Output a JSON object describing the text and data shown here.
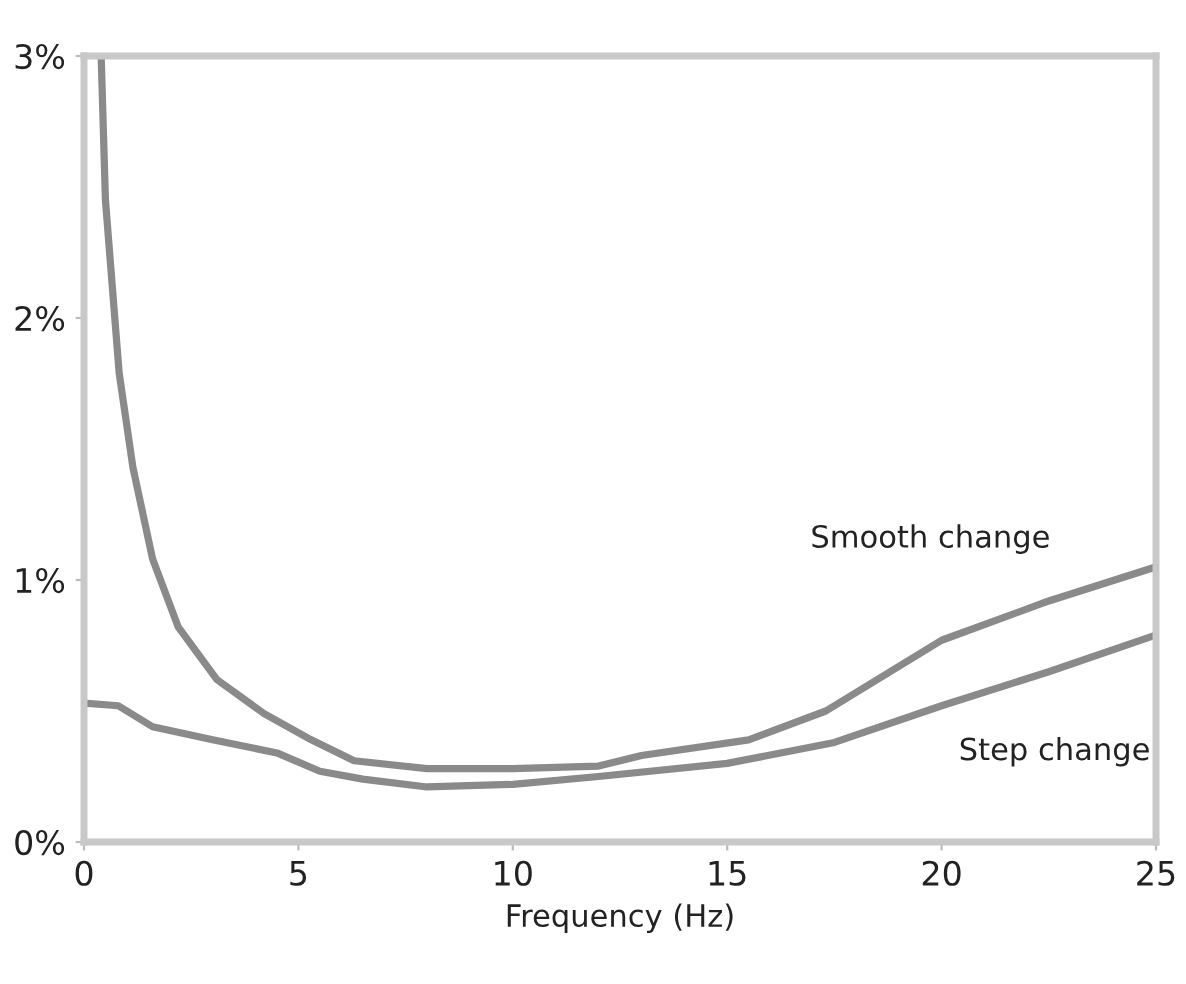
{
  "chart_data": {
    "type": "line",
    "xlabel": "Frequency (Hz)",
    "xlim": [
      0,
      25
    ],
    "xticks": [
      0,
      5,
      10,
      15,
      20,
      25
    ],
    "ylim": [
      0,
      3
    ],
    "yticks": [
      {
        "value": 0,
        "label": "0%"
      },
      {
        "value": 1,
        "label": "1%"
      },
      {
        "value": 2,
        "label": "2%"
      },
      {
        "value": 3,
        "label": "3%"
      }
    ],
    "grid": false,
    "legend": false,
    "marker": "none",
    "line_style": "solid",
    "series": [
      {
        "name": "Smooth change",
        "color": "#8a8a8a",
        "x": [
          0.4,
          0.5,
          0.82,
          1.14,
          1.6,
          2.2,
          3.1,
          4.2,
          5.3,
          6.3,
          8,
          10,
          12,
          13,
          15.5,
          17.3,
          20,
          22.5,
          25
        ],
        "values": [
          3.0,
          2.45,
          1.79,
          1.43,
          1.08,
          0.82,
          0.62,
          0.49,
          0.39,
          0.31,
          0.28,
          0.28,
          0.29,
          0.33,
          0.39,
          0.5,
          0.77,
          0.92,
          1.05
        ]
      },
      {
        "name": "Step change",
        "color": "#8a8a8a",
        "x": [
          0,
          0.8,
          1.6,
          3,
          4.5,
          5.5,
          6.5,
          8,
          10,
          12,
          15,
          17.5,
          20,
          22.5,
          25
        ],
        "values": [
          0.53,
          0.52,
          0.44,
          0.39,
          0.34,
          0.27,
          0.24,
          0.21,
          0.22,
          0.25,
          0.3,
          0.38,
          0.52,
          0.65,
          0.79
        ]
      }
    ]
  }
}
